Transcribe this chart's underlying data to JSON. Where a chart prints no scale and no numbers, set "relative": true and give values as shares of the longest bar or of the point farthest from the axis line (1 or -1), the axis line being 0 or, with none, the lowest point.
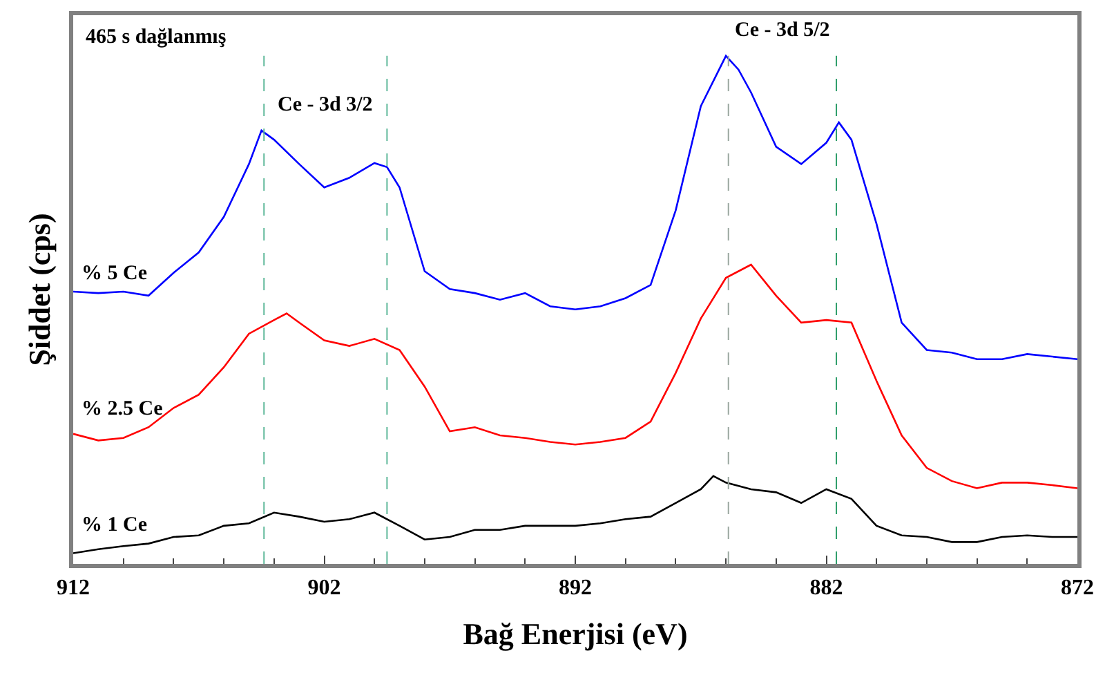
{
  "chart_data": {
    "type": "line",
    "relative": true,
    "xlabel": "Bağ Enerjisi (eV)",
    "ylabel": "Şiddet (cps)",
    "xlim": [
      912,
      872
    ],
    "xticks": [
      912,
      902,
      892,
      882,
      872
    ],
    "legend": false,
    "marker": "none",
    "line_style": "solid",
    "series": [
      {
        "name": "% 5 Ce",
        "color": "#0000ff",
        "x": [
          912,
          911,
          910,
          909,
          908,
          907,
          906,
          905,
          904.5,
          904,
          903,
          902,
          901,
          900,
          899.5,
          899,
          898,
          897,
          896,
          895,
          894,
          893,
          892,
          891,
          890,
          889,
          888,
          887,
          886,
          885.5,
          885,
          884,
          883,
          882,
          881.5,
          881,
          880,
          879,
          878,
          877,
          876,
          875,
          874,
          873,
          872
        ],
        "values": [
          0.536,
          0.533,
          0.536,
          0.528,
          0.573,
          0.613,
          0.683,
          0.787,
          0.853,
          0.835,
          0.787,
          0.741,
          0.76,
          0.789,
          0.781,
          0.741,
          0.576,
          0.541,
          0.533,
          0.52,
          0.533,
          0.507,
          0.501,
          0.507,
          0.523,
          0.549,
          0.696,
          0.901,
          1.0,
          0.973,
          0.928,
          0.821,
          0.787,
          0.829,
          0.869,
          0.835,
          0.669,
          0.475,
          0.421,
          0.416,
          0.403,
          0.403,
          0.413,
          0.408,
          0.403
        ]
      },
      {
        "name": "% 2.5 Ce",
        "color": "#ff0000",
        "x": [
          912,
          911,
          910,
          909,
          908,
          907,
          906,
          905,
          904,
          903.5,
          903,
          902,
          901,
          900,
          899,
          898,
          897,
          896,
          895,
          894,
          893,
          892,
          891,
          890,
          889,
          888,
          887,
          886,
          885,
          884,
          883,
          882,
          881,
          880,
          879,
          878,
          877,
          876,
          875,
          874,
          873,
          872
        ],
        "values": [
          0.256,
          0.243,
          0.248,
          0.269,
          0.307,
          0.333,
          0.387,
          0.453,
          0.48,
          0.493,
          0.475,
          0.44,
          0.429,
          0.443,
          0.421,
          0.349,
          0.261,
          0.269,
          0.253,
          0.248,
          0.24,
          0.235,
          0.24,
          0.248,
          0.28,
          0.376,
          0.483,
          0.563,
          0.589,
          0.528,
          0.475,
          0.48,
          0.475,
          0.36,
          0.253,
          0.189,
          0.163,
          0.149,
          0.16,
          0.16,
          0.155,
          0.149
        ]
      },
      {
        "name": "% 1 Ce",
        "color": "#000000",
        "x": [
          912,
          911,
          910,
          909,
          908,
          907,
          906,
          905,
          904,
          903,
          902,
          901,
          900,
          899,
          898,
          897,
          896,
          895,
          894,
          893,
          892,
          891,
          890,
          889,
          888,
          887,
          886.5,
          886,
          885,
          884,
          883,
          882,
          881,
          880,
          879,
          878,
          877,
          876,
          875,
          874,
          873,
          872
        ],
        "values": [
          0.021,
          0.029,
          0.035,
          0.04,
          0.053,
          0.056,
          0.075,
          0.08,
          0.101,
          0.093,
          0.083,
          0.088,
          0.101,
          0.075,
          0.048,
          0.053,
          0.067,
          0.067,
          0.075,
          0.075,
          0.075,
          0.08,
          0.088,
          0.093,
          0.12,
          0.147,
          0.173,
          0.16,
          0.147,
          0.141,
          0.12,
          0.147,
          0.128,
          0.075,
          0.056,
          0.053,
          0.043,
          0.043,
          0.053,
          0.056,
          0.053,
          0.053
        ]
      }
    ],
    "ref_lines": [
      {
        "axis": "x",
        "value": 904.4,
        "color": "#5fb89a",
        "line_style": "dashed"
      },
      {
        "axis": "x",
        "value": 899.5,
        "color": "#5fb89a",
        "line_style": "dashed"
      },
      {
        "axis": "x",
        "value": 885.9,
        "color": "#9aa8a0",
        "line_style": "dashed"
      },
      {
        "axis": "x",
        "value": 881.6,
        "color": "#2e9e6a",
        "line_style": "dashed"
      }
    ],
    "annotations": [
      "465 s dağlanmış",
      "Ce - 3d 3/2",
      "Ce - 3d 5/2"
    ]
  }
}
